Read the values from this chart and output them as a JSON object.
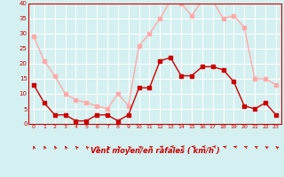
{
  "hours": [
    0,
    1,
    2,
    3,
    4,
    5,
    6,
    7,
    8,
    9,
    10,
    11,
    12,
    13,
    14,
    15,
    16,
    17,
    18,
    19,
    20,
    21,
    22,
    23
  ],
  "wind_avg": [
    13,
    7,
    3,
    3,
    1,
    1,
    3,
    3,
    1,
    3,
    12,
    12,
    21,
    22,
    16,
    16,
    19,
    19,
    18,
    14,
    6,
    5,
    7,
    3
  ],
  "wind_gust": [
    29,
    21,
    16,
    10,
    8,
    7,
    6,
    5,
    10,
    6,
    26,
    30,
    35,
    41,
    40,
    36,
    41,
    41,
    35,
    36,
    32,
    15,
    15,
    13
  ],
  "wind_dir_angles": [
    200,
    210,
    215,
    220,
    230,
    230,
    240,
    235,
    240,
    240,
    250,
    255,
    260,
    265,
    265,
    265,
    265,
    265,
    260,
    260,
    255,
    250,
    245,
    240
  ],
  "ylim": [
    0,
    40
  ],
  "yticks": [
    0,
    5,
    10,
    15,
    20,
    25,
    30,
    35,
    40
  ],
  "xlabel": "Vent moyen/en rafales ( km/h )",
  "color_avg": "#cc0000",
  "color_gust": "#ffaaaa",
  "bg_color": "#d4f0f0",
  "grid_color": "#ffffff",
  "arrow_color": "#cc0000",
  "tick_color": "#cc0000",
  "marker": "s",
  "markersize": 2.5,
  "linewidth": 1.0
}
